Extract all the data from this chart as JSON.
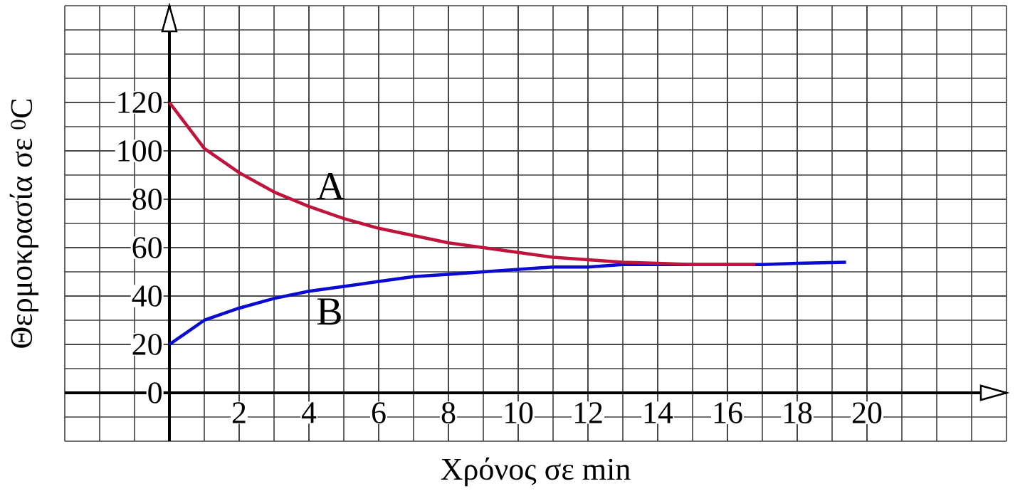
{
  "chart_data": {
    "type": "line",
    "xlabel": "Χρόνος σε min",
    "ylabel": "Θερμοκρασία σε $^{0}$C",
    "x": [
      0,
      1,
      2,
      3,
      4,
      5,
      6,
      7,
      8,
      9,
      10,
      11,
      12,
      13,
      14,
      15,
      16,
      16.8
    ],
    "series": [
      {
        "name": "B",
        "color": "#0a0ad2",
        "x": [
          0,
          1,
          2,
          3,
          4,
          5,
          6,
          7,
          8,
          9,
          10,
          11,
          12,
          13,
          14,
          15,
          16,
          17,
          18,
          19.4
        ],
        "values": [
          20,
          30,
          35,
          39,
          42,
          44,
          46,
          48,
          49,
          50,
          51,
          52,
          52,
          53,
          53,
          53,
          53,
          53,
          53.5,
          54
        ]
      },
      {
        "name": "A",
        "color": "#c0143c",
        "values": [
          120,
          101,
          91,
          83,
          77,
          72,
          68,
          65,
          62,
          60,
          58,
          56,
          55,
          54,
          53.5,
          53,
          53,
          53
        ]
      }
    ],
    "xlim": [
      -3,
      24
    ],
    "ylim": [
      -20,
      160
    ],
    "xticks": [
      2,
      4,
      6,
      8,
      10,
      12,
      14,
      16,
      18,
      20
    ],
    "yticks": [
      0,
      20,
      40,
      60,
      80,
      100,
      120
    ],
    "grid": true,
    "legend": false,
    "marker": "none",
    "line_style": "solid"
  }
}
